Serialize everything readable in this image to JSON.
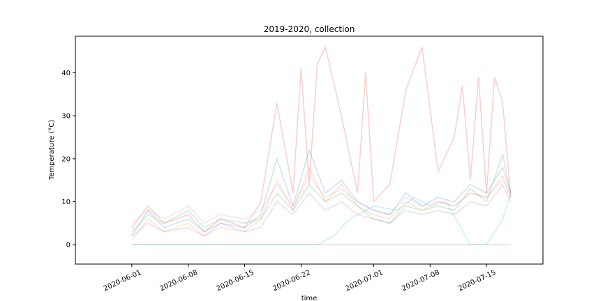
{
  "chart_data": {
    "type": "line",
    "title": "2019-2020, collection",
    "xlabel": "time",
    "ylabel": "Temperature (°C)",
    "xlim": [
      "2020-05-25",
      "2020-07-22"
    ],
    "ylim": [
      -4.5,
      48.5
    ],
    "x_ticks": [
      "2020-06-01",
      "2020-06-08",
      "2020-06-15",
      "2020-06-22",
      "2020-07-01",
      "2020-07-08",
      "2020-07-15"
    ],
    "y_ticks": [
      0,
      10,
      20,
      30,
      40
    ],
    "grid": false,
    "legend": false,
    "line_opacity": 0.22,
    "series": [
      {
        "color": "#1f77b4",
        "x": [
          "2020-06-01",
          "2020-06-03",
          "2020-06-05",
          "2020-06-08",
          "2020-06-10",
          "2020-06-12",
          "2020-06-15",
          "2020-06-17",
          "2020-06-19",
          "2020-06-21",
          "2020-06-23",
          "2020-06-25",
          "2020-06-27",
          "2020-06-29",
          "2020-07-01",
          "2020-07-03",
          "2020-07-05",
          "2020-07-07",
          "2020-07-09",
          "2020-07-11",
          "2020-07-13",
          "2020-07-15",
          "2020-07-17",
          "2020-07-18"
        ],
        "values": [
          2,
          8,
          4,
          6,
          3,
          5,
          4,
          7,
          20,
          9,
          22,
          12,
          15,
          10,
          8,
          7,
          12,
          9,
          11,
          10,
          14,
          12,
          18,
          12
        ]
      },
      {
        "color": "#ff7f0e",
        "x": [
          "2020-06-01",
          "2020-06-03",
          "2020-06-05",
          "2020-06-08",
          "2020-06-10",
          "2020-06-12",
          "2020-06-15",
          "2020-06-17",
          "2020-06-19",
          "2020-06-21",
          "2020-06-23",
          "2020-06-25",
          "2020-06-27",
          "2020-06-29",
          "2020-07-01",
          "2020-07-03",
          "2020-07-05",
          "2020-07-07",
          "2020-07-09",
          "2020-07-11",
          "2020-07-13",
          "2020-07-15",
          "2020-07-17",
          "2020-07-18"
        ],
        "values": [
          1,
          6,
          3,
          5,
          2,
          4,
          3,
          6,
          15,
          8,
          18,
          10,
          14,
          9,
          7,
          6,
          10,
          8,
          10,
          9,
          12,
          11,
          16,
          11
        ]
      },
      {
        "color": "#2ca02c",
        "x": [
          "2020-06-01",
          "2020-06-03",
          "2020-06-05",
          "2020-06-08",
          "2020-06-10",
          "2020-06-12",
          "2020-06-15",
          "2020-06-17",
          "2020-06-19",
          "2020-06-21",
          "2020-06-23",
          "2020-06-25",
          "2020-06-27",
          "2020-06-29",
          "2020-07-01",
          "2020-07-03",
          "2020-07-05",
          "2020-07-07",
          "2020-07-09",
          "2020-07-11",
          "2020-07-13",
          "2020-07-15",
          "2020-07-17",
          "2020-07-18"
        ],
        "values": [
          3,
          7,
          5,
          8,
          4,
          6,
          5,
          6,
          12,
          8,
          14,
          10,
          12,
          9,
          6,
          5,
          9,
          8,
          9,
          8,
          13,
          10,
          21,
          12
        ]
      },
      {
        "color": "#d62728",
        "x": [
          "2020-06-01",
          "2020-06-03",
          "2020-06-05",
          "2020-06-08",
          "2020-06-10",
          "2020-06-12",
          "2020-06-15",
          "2020-06-17",
          "2020-06-19",
          "2020-06-21",
          "2020-06-22",
          "2020-06-23",
          "2020-06-24",
          "2020-06-25",
          "2020-06-27",
          "2020-06-29",
          "2020-06-30",
          "2020-07-01",
          "2020-07-03",
          "2020-07-05",
          "2020-07-07",
          "2020-07-09",
          "2020-07-11",
          "2020-07-12",
          "2020-07-13",
          "2020-07-14",
          "2020-07-15",
          "2020-07-16",
          "2020-07-17",
          "2020-07-18"
        ],
        "values": [
          4,
          9,
          5,
          7,
          3,
          6,
          4,
          10,
          33,
          12,
          41,
          14,
          42,
          46,
          30,
          12,
          40,
          10,
          14,
          36,
          46,
          17,
          25,
          37,
          15,
          39,
          12,
          39,
          33,
          11
        ]
      },
      {
        "color": "#9467bd",
        "x": [
          "2020-06-01",
          "2020-06-03",
          "2020-06-05",
          "2020-06-08",
          "2020-06-10",
          "2020-06-12",
          "2020-06-15",
          "2020-06-17",
          "2020-06-19",
          "2020-06-21",
          "2020-06-23",
          "2020-06-25",
          "2020-06-27",
          "2020-06-29",
          "2020-07-01",
          "2020-07-03",
          "2020-07-05",
          "2020-07-07",
          "2020-07-09",
          "2020-07-11",
          "2020-07-13",
          "2020-07-15",
          "2020-07-17",
          "2020-07-18"
        ],
        "values": [
          2,
          5,
          3,
          4,
          2,
          5,
          3,
          4,
          10,
          7,
          12,
          8,
          10,
          7,
          6,
          5,
          8,
          7,
          8,
          7,
          10,
          9,
          14,
          10
        ]
      },
      {
        "color": "#8c564b",
        "x": [
          "2020-06-01",
          "2020-06-10",
          "2020-06-20",
          "2020-07-01",
          "2020-07-10",
          "2020-07-18"
        ],
        "values": [
          0,
          0,
          0,
          0,
          0,
          0
        ]
      },
      {
        "color": "#e377c2",
        "x": [
          "2020-06-01",
          "2020-06-03",
          "2020-06-05",
          "2020-06-08",
          "2020-06-10",
          "2020-06-12",
          "2020-06-15",
          "2020-06-17",
          "2020-06-19",
          "2020-06-21",
          "2020-06-23",
          "2020-06-25",
          "2020-06-27",
          "2020-06-29",
          "2020-07-01",
          "2020-07-03",
          "2020-07-05",
          "2020-07-07",
          "2020-07-09",
          "2020-07-11",
          "2020-07-13",
          "2020-07-15",
          "2020-07-17",
          "2020-07-18"
        ],
        "values": [
          5,
          8,
          6,
          9,
          5,
          7,
          6,
          8,
          14,
          9,
          16,
          11,
          13,
          10,
          8,
          7,
          11,
          9,
          10,
          9,
          12,
          11,
          15,
          12
        ]
      },
      {
        "color": "#17becf",
        "x": [
          "2020-06-01",
          "2020-06-10",
          "2020-06-20",
          "2020-06-24",
          "2020-06-26",
          "2020-06-28",
          "2020-07-01",
          "2020-07-04",
          "2020-07-06",
          "2020-07-08",
          "2020-07-10",
          "2020-07-13",
          "2020-07-15",
          "2020-07-17",
          "2020-07-18"
        ],
        "values": [
          0,
          0,
          0,
          0,
          2,
          6,
          9,
          8,
          11,
          9,
          10,
          0,
          0,
          6,
          12
        ]
      }
    ]
  }
}
